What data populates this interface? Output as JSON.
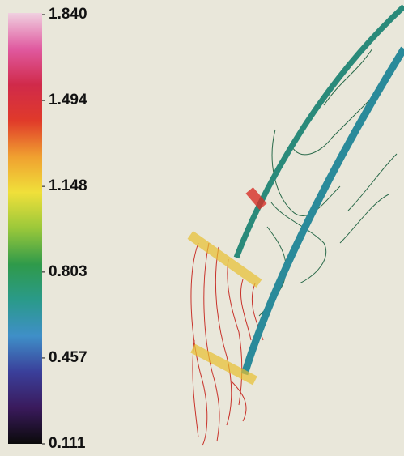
{
  "chart_data": {
    "type": "contour",
    "colorbar": {
      "ylim": [
        0.111,
        1.84
      ],
      "yticks": [
        {
          "value": 1.84,
          "label": "1.840"
        },
        1.494,
        1.148,
        0.803,
        0.457,
        0.111
      ],
      "colors": [
        "#0a0a0a",
        "#3a1a5c",
        "#3a3f9a",
        "#3f8fc8",
        "#2a9a8a",
        "#2f9a4a",
        "#9ac83a",
        "#f0e03a",
        "#f0a030",
        "#e03a2a",
        "#d02a4a",
        "#e05aa0",
        "#f0d0e0"
      ]
    }
  }
}
